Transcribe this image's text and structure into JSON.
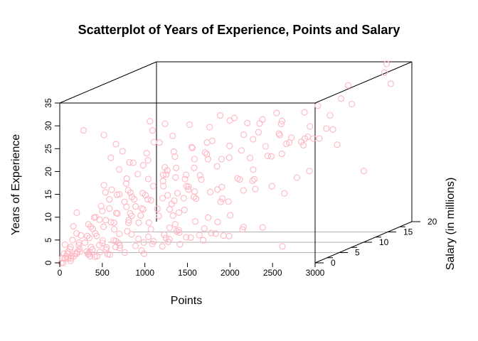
{
  "chart_data": {
    "type": "scatter",
    "title": "Scatterplot of Years of Experience, Points and Salary",
    "xlabel": "Points",
    "ylabel": "Salary (in millions)",
    "zlabel": "Years of Experience",
    "xlim": [
      0,
      3000
    ],
    "ylim": [
      0,
      20
    ],
    "zlim": [
      0,
      35
    ],
    "x_ticks": [
      "0",
      "500",
      "1000",
      "1500",
      "2000",
      "2500",
      "3000"
    ],
    "y_ticks": [
      "0",
      "5",
      "10",
      "15",
      "20"
    ],
    "z_ticks": [
      "0",
      "5",
      "10",
      "15",
      "20",
      "25",
      "30",
      "35"
    ],
    "grid": true,
    "point_color": "#ffb6c1",
    "points": [
      [
        2980,
        16,
        32
      ],
      [
        2680,
        11,
        31
      ],
      [
        2320,
        4,
        31
      ],
      [
        2460,
        8,
        24
      ],
      [
        2270,
        10,
        22
      ],
      [
        2520,
        13,
        20
      ],
      [
        2150,
        9,
        22
      ],
      [
        2550,
        18,
        12
      ],
      [
        2450,
        12,
        24
      ],
      [
        2300,
        16,
        22
      ],
      [
        1920,
        12,
        25
      ],
      [
        1880,
        8,
        25
      ],
      [
        1780,
        10,
        26
      ],
      [
        1710,
        6,
        29
      ],
      [
        1700,
        12,
        26
      ],
      [
        1600,
        5,
        30
      ],
      [
        1650,
        9,
        24
      ],
      [
        1540,
        8,
        22
      ],
      [
        1500,
        4,
        22
      ],
      [
        1450,
        6,
        24
      ],
      [
        1560,
        3,
        25
      ],
      [
        1380,
        3,
        24
      ],
      [
        1400,
        6,
        20
      ],
      [
        1350,
        4,
        19
      ],
      [
        1300,
        3,
        17
      ],
      [
        1780,
        14,
        22
      ],
      [
        1900,
        14,
        20
      ],
      [
        1970,
        16,
        20
      ],
      [
        2070,
        16,
        20
      ],
      [
        1690,
        14,
        17
      ],
      [
        1590,
        12,
        15
      ],
      [
        1520,
        10,
        14
      ],
      [
        1640,
        11,
        13
      ],
      [
        1450,
        8,
        13
      ],
      [
        1340,
        9,
        12
      ],
      [
        1400,
        9,
        10
      ],
      [
        1180,
        1,
        30
      ],
      [
        1060,
        0,
        31
      ],
      [
        1090,
        0,
        29
      ],
      [
        1050,
        1,
        26
      ],
      [
        1020,
        0,
        24
      ],
      [
        980,
        1,
        22
      ],
      [
        1120,
        2,
        20
      ],
      [
        1170,
        3,
        23
      ],
      [
        1140,
        4,
        19
      ],
      [
        1100,
        2,
        17
      ],
      [
        1080,
        3,
        18
      ],
      [
        1200,
        5,
        17
      ],
      [
        1250,
        7,
        16
      ],
      [
        1170,
        6,
        14
      ],
      [
        1100,
        5,
        13
      ],
      [
        1040,
        4,
        13
      ],
      [
        990,
        4,
        15
      ],
      [
        1130,
        8,
        12
      ],
      [
        1060,
        7,
        11
      ],
      [
        950,
        6,
        9
      ],
      [
        1010,
        8,
        8
      ],
      [
        920,
        4,
        10
      ],
      [
        880,
        5,
        8
      ],
      [
        820,
        4,
        7
      ],
      [
        780,
        3,
        9
      ],
      [
        900,
        3,
        6
      ],
      [
        950,
        6,
        5
      ],
      [
        1000,
        7,
        4
      ],
      [
        1080,
        9,
        5
      ],
      [
        1130,
        10,
        3
      ],
      [
        1230,
        11,
        4
      ],
      [
        1320,
        12,
        5
      ],
      [
        1420,
        13,
        2
      ],
      [
        1530,
        15,
        1
      ],
      [
        2160,
        8,
        0
      ],
      [
        930,
        1,
        4
      ],
      [
        990,
        0,
        2
      ],
      [
        850,
        2,
        11
      ],
      [
        790,
        1,
        14
      ],
      [
        700,
        0,
        15
      ],
      [
        760,
        2,
        13
      ],
      [
        610,
        0,
        16
      ],
      [
        640,
        1,
        20
      ],
      [
        600,
        0,
        23
      ],
      [
        820,
        0,
        22
      ],
      [
        860,
        1,
        19
      ],
      [
        730,
        1,
        18
      ],
      [
        690,
        2,
        15
      ],
      [
        720,
        3,
        11
      ],
      [
        520,
        0,
        28
      ],
      [
        280,
        0,
        29
      ],
      [
        520,
        0,
        17
      ],
      [
        480,
        1,
        15
      ],
      [
        590,
        3,
        12
      ],
      [
        550,
        2,
        10
      ],
      [
        470,
        2,
        13
      ],
      [
        430,
        1,
        12
      ],
      [
        420,
        0,
        10
      ],
      [
        490,
        2,
        8
      ],
      [
        600,
        4,
        9
      ],
      [
        580,
        4,
        7
      ],
      [
        530,
        3,
        5
      ],
      [
        470,
        3,
        6
      ],
      [
        400,
        2,
        7
      ],
      [
        360,
        1,
        6
      ],
      [
        390,
        2,
        4
      ],
      [
        320,
        2,
        5
      ],
      [
        280,
        1,
        8
      ],
      [
        310,
        1,
        3
      ],
      [
        250,
        0,
        6
      ],
      [
        200,
        0,
        11
      ],
      [
        240,
        1,
        4
      ],
      [
        160,
        0,
        8
      ],
      [
        150,
        0,
        5
      ],
      [
        120,
        0,
        3
      ],
      [
        90,
        0,
        2
      ],
      [
        60,
        0,
        1
      ],
      [
        40,
        0,
        0
      ],
      [
        30,
        0,
        1
      ],
      [
        70,
        1,
        0
      ],
      [
        110,
        1,
        1
      ],
      [
        180,
        1,
        2
      ],
      [
        220,
        2,
        1
      ],
      [
        270,
        2,
        2
      ],
      [
        330,
        3,
        3
      ],
      [
        380,
        3,
        2
      ],
      [
        430,
        4,
        3
      ],
      [
        480,
        4,
        2
      ],
      [
        560,
        5,
        4
      ],
      [
        640,
        5,
        3
      ],
      [
        700,
        6,
        3
      ],
      [
        760,
        6,
        2
      ],
      [
        830,
        7,
        3
      ],
      [
        890,
        7,
        2
      ],
      [
        950,
        8,
        3
      ],
      [
        1030,
        8,
        2
      ],
      [
        1130,
        9,
        2
      ],
      [
        1210,
        10,
        2
      ],
      [
        1300,
        11,
        1
      ],
      [
        680,
        2,
        6
      ],
      [
        640,
        3,
        8
      ],
      [
        700,
        4,
        7
      ],
      [
        520,
        2,
        4
      ],
      [
        600,
        1,
        3
      ],
      [
        430,
        2,
        2
      ],
      [
        350,
        2,
        3
      ],
      [
        300,
        1,
        1
      ],
      [
        200,
        0,
        2
      ],
      [
        150,
        1,
        2
      ],
      [
        100,
        0,
        1
      ],
      [
        80,
        1,
        1
      ],
      [
        20,
        0,
        0
      ],
      [
        50,
        0,
        2
      ],
      [
        130,
        0,
        1
      ],
      [
        60,
        0,
        4
      ],
      [
        380,
        1,
        1
      ],
      [
        340,
        0,
        2
      ],
      [
        230,
        0,
        3
      ],
      [
        180,
        0,
        2
      ],
      [
        260,
        1,
        2
      ],
      [
        450,
        2,
        1
      ],
      [
        520,
        3,
        3
      ],
      [
        290,
        1,
        5
      ],
      [
        330,
        1,
        7
      ],
      [
        410,
        1,
        9
      ],
      [
        470,
        2,
        11
      ],
      [
        560,
        2,
        14
      ],
      [
        610,
        3,
        16
      ],
      [
        660,
        3,
        14
      ],
      [
        780,
        4,
        13
      ],
      [
        870,
        4,
        15
      ],
      [
        930,
        5,
        17
      ],
      [
        980,
        5,
        18
      ],
      [
        1020,
        6,
        16
      ],
      [
        1070,
        5,
        21
      ],
      [
        1160,
        7,
        22
      ],
      [
        1240,
        6,
        20
      ],
      [
        1310,
        7,
        21
      ],
      [
        1480,
        9,
        19
      ],
      [
        1610,
        11,
        18
      ],
      [
        1760,
        12,
        18
      ],
      [
        1870,
        13,
        18
      ],
      [
        2010,
        15,
        19
      ],
      [
        2140,
        16,
        20
      ],
      [
        1300,
        12,
        8
      ],
      [
        1420,
        13,
        10
      ],
      [
        1490,
        14,
        12
      ],
      [
        1640,
        15,
        10
      ],
      [
        1730,
        16,
        8
      ],
      [
        1820,
        17,
        11
      ],
      [
        1910,
        18,
        12
      ],
      [
        1200,
        10,
        11
      ],
      [
        1090,
        9,
        10
      ],
      [
        1000,
        9,
        12
      ],
      [
        890,
        8,
        10
      ],
      [
        810,
        7,
        11
      ],
      [
        730,
        6,
        11
      ],
      [
        690,
        5,
        13
      ],
      [
        640,
        6,
        9
      ],
      [
        560,
        5,
        8
      ],
      [
        500,
        5,
        10
      ],
      [
        450,
        4,
        9
      ],
      [
        410,
        4,
        7
      ],
      [
        370,
        3,
        8
      ],
      [
        330,
        3,
        10
      ],
      [
        290,
        2,
        9
      ],
      [
        250,
        2,
        7
      ],
      [
        210,
        2,
        5
      ],
      [
        170,
        1,
        4
      ],
      [
        140,
        1,
        6
      ],
      [
        110,
        2,
        3
      ],
      [
        70,
        1,
        3
      ],
      [
        40,
        1,
        2
      ],
      [
        20,
        1,
        1
      ],
      [
        180,
        3,
        1
      ],
      [
        240,
        3,
        0
      ],
      [
        300,
        3,
        1
      ],
      [
        360,
        4,
        0
      ],
      [
        420,
        5,
        1
      ],
      [
        480,
        5,
        0
      ],
      [
        550,
        6,
        1
      ],
      [
        620,
        6,
        0
      ],
      [
        690,
        7,
        1
      ],
      [
        750,
        8,
        0
      ],
      [
        820,
        8,
        1
      ],
      [
        900,
        9,
        0
      ],
      [
        970,
        10,
        1
      ],
      [
        1060,
        11,
        0
      ],
      [
        1150,
        12,
        1
      ],
      [
        1250,
        13,
        0
      ],
      [
        1350,
        14,
        1
      ],
      [
        1160,
        3,
        9
      ],
      [
        1200,
        2,
        12
      ],
      [
        1260,
        4,
        15
      ],
      [
        1380,
        5,
        16
      ],
      [
        1450,
        7,
        18
      ],
      [
        1560,
        6,
        20
      ],
      [
        1680,
        8,
        21
      ],
      [
        1760,
        9,
        23
      ],
      [
        1850,
        10,
        21
      ],
      [
        1960,
        11,
        23
      ],
      [
        2040,
        12,
        22
      ],
      [
        2200,
        13,
        24
      ],
      [
        2380,
        14,
        26
      ],
      [
        2580,
        15,
        28
      ],
      [
        1900,
        7,
        13
      ],
      [
        1830,
        5,
        16
      ],
      [
        1720,
        3,
        12
      ],
      [
        1630,
        2,
        9
      ],
      [
        1520,
        1,
        14
      ],
      [
        1400,
        0,
        11
      ],
      [
        1300,
        1,
        8
      ],
      [
        1260,
        2,
        6
      ],
      [
        1190,
        1,
        5
      ],
      [
        920,
        2,
        13
      ],
      [
        870,
        3,
        17
      ],
      [
        810,
        3,
        20
      ],
      [
        750,
        2,
        21
      ],
      [
        680,
        1,
        24
      ],
      [
        660,
        0,
        26
      ],
      [
        1000,
        3,
        25
      ],
      [
        1100,
        4,
        26
      ],
      [
        1240,
        5,
        28
      ],
      [
        1420,
        6,
        27
      ],
      [
        1600,
        7,
        28
      ],
      [
        1750,
        8,
        27
      ],
      [
        2100,
        9,
        27
      ],
      [
        2250,
        11,
        28
      ],
      [
        2350,
        12,
        29
      ],
      [
        2650,
        13,
        33
      ],
      [
        2850,
        17,
        34
      ],
      [
        2760,
        19,
        35
      ]
    ]
  }
}
